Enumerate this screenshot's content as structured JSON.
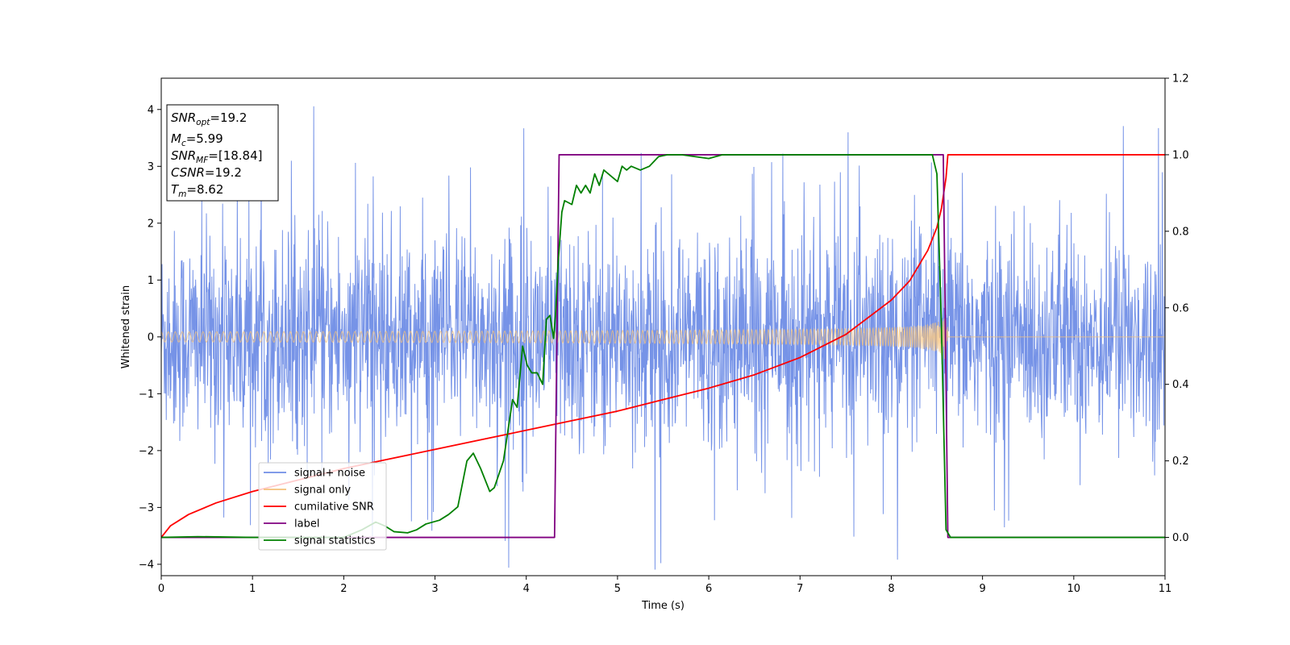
{
  "chart_data": {
    "type": "line",
    "xlabel": "Time (s)",
    "ylabel": "Whitened strain",
    "xlim": [
      0,
      11
    ],
    "ylim": [
      -4.2,
      4.55
    ],
    "ylim_right": [
      -0.1,
      1.2
    ],
    "xticks": [
      "0",
      "1",
      "2",
      "3",
      "4",
      "5",
      "6",
      "7",
      "8",
      "9",
      "10",
      "11"
    ],
    "yticks": [
      "−4",
      "−3",
      "−2",
      "−1",
      "0",
      "1",
      "2",
      "3",
      "4"
    ],
    "yticks_right": [
      "0.0",
      "0.2",
      "0.4",
      "0.6",
      "0.8",
      "1.0",
      "1.2"
    ],
    "grid": false,
    "legend_position": "lower-left",
    "series": [
      {
        "name": "signal+ noise",
        "axis": "left",
        "color": "#6f8de6",
        "description_values": "noise band approx ±1.5 with spikes to ±4"
      },
      {
        "name": "signal only",
        "axis": "left",
        "color": "#f5c17a",
        "chirp_start": 0,
        "chirp_end": 8.62,
        "amplitude_start": 0.1,
        "amplitude_end": 1.05
      },
      {
        "name": "cumilative SNR",
        "axis": "right",
        "color": "#ff0000",
        "x": [
          0,
          0.1,
          0.3,
          0.6,
          1,
          1.5,
          2,
          2.5,
          3,
          3.5,
          4,
          4.5,
          5,
          5.5,
          6,
          6.5,
          7,
          7.5,
          8,
          8.2,
          8.4,
          8.5,
          8.55,
          8.6,
          8.62,
          11
        ],
        "y": [
          0.0,
          0.03,
          0.06,
          0.09,
          0.12,
          0.15,
          0.18,
          0.205,
          0.23,
          0.255,
          0.28,
          0.305,
          0.33,
          0.36,
          0.39,
          0.425,
          0.47,
          0.53,
          0.62,
          0.67,
          0.75,
          0.81,
          0.86,
          0.94,
          1.0,
          1.0
        ]
      },
      {
        "name": "label",
        "axis": "right",
        "color": "#800080",
        "x": [
          0,
          4.31,
          4.36,
          8.57,
          8.62,
          11
        ],
        "y": [
          0,
          0,
          1,
          1,
          0,
          0
        ]
      },
      {
        "name": "signal statistics",
        "axis": "right",
        "color": "#008000",
        "x": [
          0,
          0.4,
          1,
          1.5,
          2,
          2.2,
          2.35,
          2.45,
          2.55,
          2.7,
          2.8,
          2.9,
          3.05,
          3.15,
          3.25,
          3.35,
          3.42,
          3.5,
          3.6,
          3.65,
          3.75,
          3.85,
          3.9,
          3.96,
          4.01,
          4.06,
          4.12,
          4.18,
          4.22,
          4.26,
          4.3,
          4.32,
          4.35,
          4.39,
          4.42,
          4.5,
          4.55,
          4.6,
          4.65,
          4.7,
          4.75,
          4.8,
          4.85,
          4.95,
          5.0,
          5.05,
          5.1,
          5.15,
          5.25,
          5.35,
          5.45,
          5.55,
          5.7,
          6.0,
          6.15,
          6.3,
          6.6,
          7.0,
          7.5,
          8.0,
          8.3,
          8.45,
          8.5,
          8.55,
          8.6,
          8.65,
          8.75,
          9.0,
          11
        ],
        "y": [
          0.0,
          0.002,
          0.0,
          0.0,
          0.0,
          0.02,
          0.04,
          0.03,
          0.015,
          0.012,
          0.02,
          0.035,
          0.045,
          0.06,
          0.08,
          0.2,
          0.22,
          0.18,
          0.12,
          0.13,
          0.2,
          0.36,
          0.34,
          0.5,
          0.45,
          0.43,
          0.43,
          0.4,
          0.57,
          0.58,
          0.52,
          0.58,
          0.72,
          0.85,
          0.88,
          0.87,
          0.92,
          0.9,
          0.92,
          0.9,
          0.95,
          0.92,
          0.96,
          0.94,
          0.93,
          0.97,
          0.96,
          0.97,
          0.96,
          0.97,
          0.995,
          1.0,
          1.0,
          0.99,
          1.0,
          1.0,
          1.0,
          1.0,
          1.0,
          1.0,
          1.0,
          1.0,
          0.95,
          0.55,
          0.02,
          0.0,
          0.0,
          0.0,
          0.0
        ]
      }
    ],
    "annotation": {
      "lines": [
        {
          "main": "SNR",
          "sub": "opt",
          "rest": "=19.2"
        },
        {
          "main": "M",
          "sub": "c",
          "rest": "=5.99"
        },
        {
          "main": "SNR",
          "sub": "MF",
          "rest": "=[18.84]"
        },
        {
          "main": "CSNR",
          "sub": "",
          "rest": "=19.2"
        },
        {
          "main": "T",
          "sub": "m",
          "rest": "=8.62"
        }
      ]
    }
  }
}
